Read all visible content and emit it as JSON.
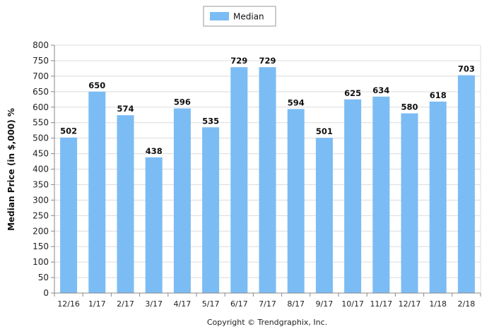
{
  "chart_data": {
    "type": "bar",
    "title": "",
    "xlabel": "",
    "ylabel": "Median Price (in $,000) %",
    "ylim": [
      0,
      800
    ],
    "ytick_step": 50,
    "grid": true,
    "legend_position": "top-center",
    "categories": [
      "12/16",
      "1/17",
      "2/17",
      "3/17",
      "4/17",
      "5/17",
      "6/17",
      "7/17",
      "8/17",
      "9/17",
      "10/17",
      "11/17",
      "12/17",
      "1/18",
      "2/18"
    ],
    "series": [
      {
        "name": "Median",
        "color": "#7bbcf4",
        "values": [
          502,
          650,
          574,
          438,
          596,
          535,
          729,
          729,
          594,
          501,
          625,
          634,
          580,
          618,
          703
        ]
      }
    ]
  },
  "footer": {
    "copyright": "Copyright © Trendgraphix, Inc."
  }
}
